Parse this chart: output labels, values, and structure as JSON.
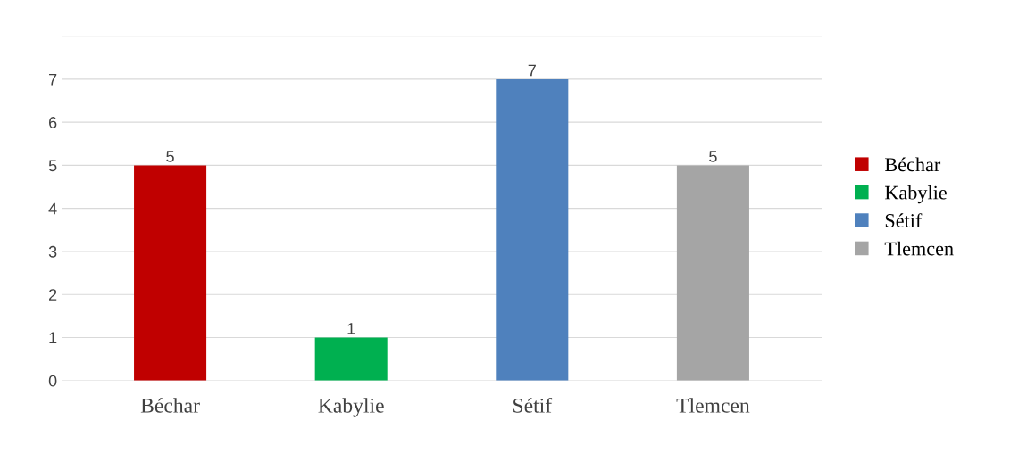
{
  "chart_data": {
    "type": "bar",
    "categories": [
      "Béchar",
      "Kabylie",
      "Sétif",
      "Tlemcen"
    ],
    "series": [
      {
        "name": "Béchar",
        "color": "#c00000",
        "values": [
          5,
          null,
          null,
          null
        ]
      },
      {
        "name": "Kabylie",
        "color": "#00b050",
        "values": [
          null,
          1,
          null,
          null
        ]
      },
      {
        "name": "Sétif",
        "color": "#4f81bd",
        "values": [
          null,
          null,
          7,
          null
        ]
      },
      {
        "name": "Tlemcen",
        "color": "#a5a5a5",
        "values": [
          null,
          null,
          null,
          5
        ]
      }
    ],
    "ylim": [
      0,
      8
    ],
    "yticks": [
      0,
      1,
      2,
      3,
      4,
      5,
      6,
      7,
      {
        "value": 8,
        "label": null
      }
    ],
    "grid": "y",
    "legend": "right",
    "data_labels": true
  }
}
